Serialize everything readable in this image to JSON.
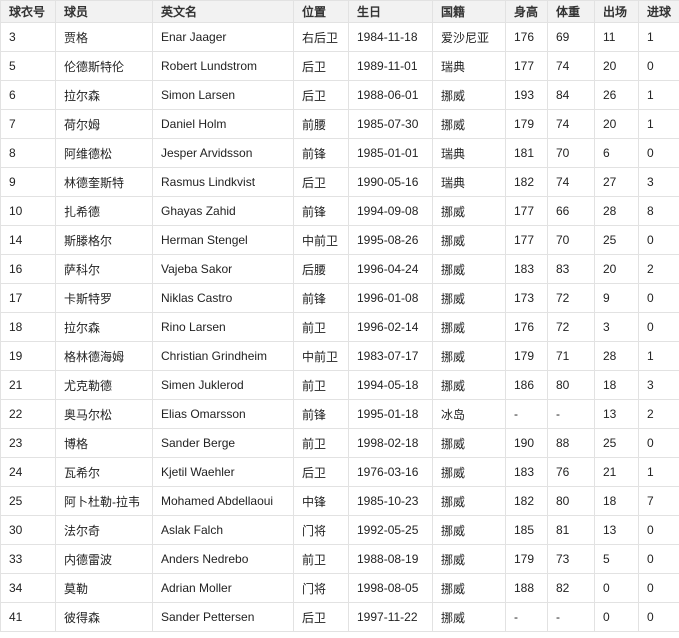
{
  "table": {
    "headers": [
      "球衣号",
      "球员",
      "英文名",
      "位置",
      "生日",
      "国籍",
      "身高",
      "体重",
      "出场",
      "进球"
    ],
    "rows": [
      [
        "3",
        "贾格",
        "Enar Jaager",
        "右后卫",
        "1984-11-18",
        "爱沙尼亚",
        "176",
        "69",
        "11",
        "1"
      ],
      [
        "5",
        "伦德斯特伦",
        "Robert Lundstrom",
        "后卫",
        "1989-11-01",
        "瑞典",
        "177",
        "74",
        "20",
        "0"
      ],
      [
        "6",
        "拉尔森",
        "Simon Larsen",
        "后卫",
        "1988-06-01",
        "挪威",
        "193",
        "84",
        "26",
        "1"
      ],
      [
        "7",
        "荷尔姆",
        "Daniel Holm",
        "前腰",
        "1985-07-30",
        "挪威",
        "179",
        "74",
        "20",
        "1"
      ],
      [
        "8",
        "阿维德松",
        "Jesper Arvidsson",
        "前锋",
        "1985-01-01",
        "瑞典",
        "181",
        "70",
        "6",
        "0"
      ],
      [
        "9",
        "林德奎斯特",
        "Rasmus Lindkvist",
        "后卫",
        "1990-05-16",
        "瑞典",
        "182",
        "74",
        "27",
        "3"
      ],
      [
        "10",
        "扎希德",
        "Ghayas Zahid",
        "前锋",
        "1994-09-08",
        "挪威",
        "177",
        "66",
        "28",
        "8"
      ],
      [
        "14",
        "斯滕格尔",
        "Herman Stengel",
        "中前卫",
        "1995-08-26",
        "挪威",
        "177",
        "70",
        "25",
        "0"
      ],
      [
        "16",
        "萨科尔",
        "Vajeba Sakor",
        "后腰",
        "1996-04-24",
        "挪威",
        "183",
        "83",
        "20",
        "2"
      ],
      [
        "17",
        "卡斯特罗",
        "Niklas Castro",
        "前锋",
        "1996-01-08",
        "挪威",
        "173",
        "72",
        "9",
        "0"
      ],
      [
        "18",
        "拉尔森",
        "Rino Larsen",
        "前卫",
        "1996-02-14",
        "挪威",
        "176",
        "72",
        "3",
        "0"
      ],
      [
        "19",
        "格林德海姆",
        "Christian Grindheim",
        "中前卫",
        "1983-07-17",
        "挪威",
        "179",
        "71",
        "28",
        "1"
      ],
      [
        "21",
        "尤克勒德",
        "Simen Juklerod",
        "前卫",
        "1994-05-18",
        "挪威",
        "186",
        "80",
        "18",
        "3"
      ],
      [
        "22",
        "奥马尔松",
        "Elias Omarsson",
        "前锋",
        "1995-01-18",
        "冰岛",
        "-",
        "-",
        "13",
        "2"
      ],
      [
        "23",
        "博格",
        "Sander Berge",
        "前卫",
        "1998-02-18",
        "挪威",
        "190",
        "88",
        "25",
        "0"
      ],
      [
        "24",
        "瓦希尔",
        "Kjetil Waehler",
        "后卫",
        "1976-03-16",
        "挪威",
        "183",
        "76",
        "21",
        "1"
      ],
      [
        "25",
        "阿卜杜勒-拉韦",
        "Mohamed Abdellaoui",
        "中锋",
        "1985-10-23",
        "挪威",
        "182",
        "80",
        "18",
        "7"
      ],
      [
        "30",
        "法尔奇",
        "Aslak Falch",
        "门将",
        "1992-05-25",
        "挪威",
        "185",
        "81",
        "13",
        "0"
      ],
      [
        "33",
        "内德雷波",
        "Anders Nedrebo",
        "前卫",
        "1988-08-19",
        "挪威",
        "179",
        "73",
        "5",
        "0"
      ],
      [
        "34",
        "莫勒",
        "Adrian Moller",
        "门将",
        "1998-08-05",
        "挪威",
        "188",
        "82",
        "0",
        "0"
      ],
      [
        "41",
        "彼得森",
        "Sander Pettersen",
        "后卫",
        "1997-11-22",
        "挪威",
        "-",
        "-",
        "0",
        "0"
      ]
    ]
  }
}
